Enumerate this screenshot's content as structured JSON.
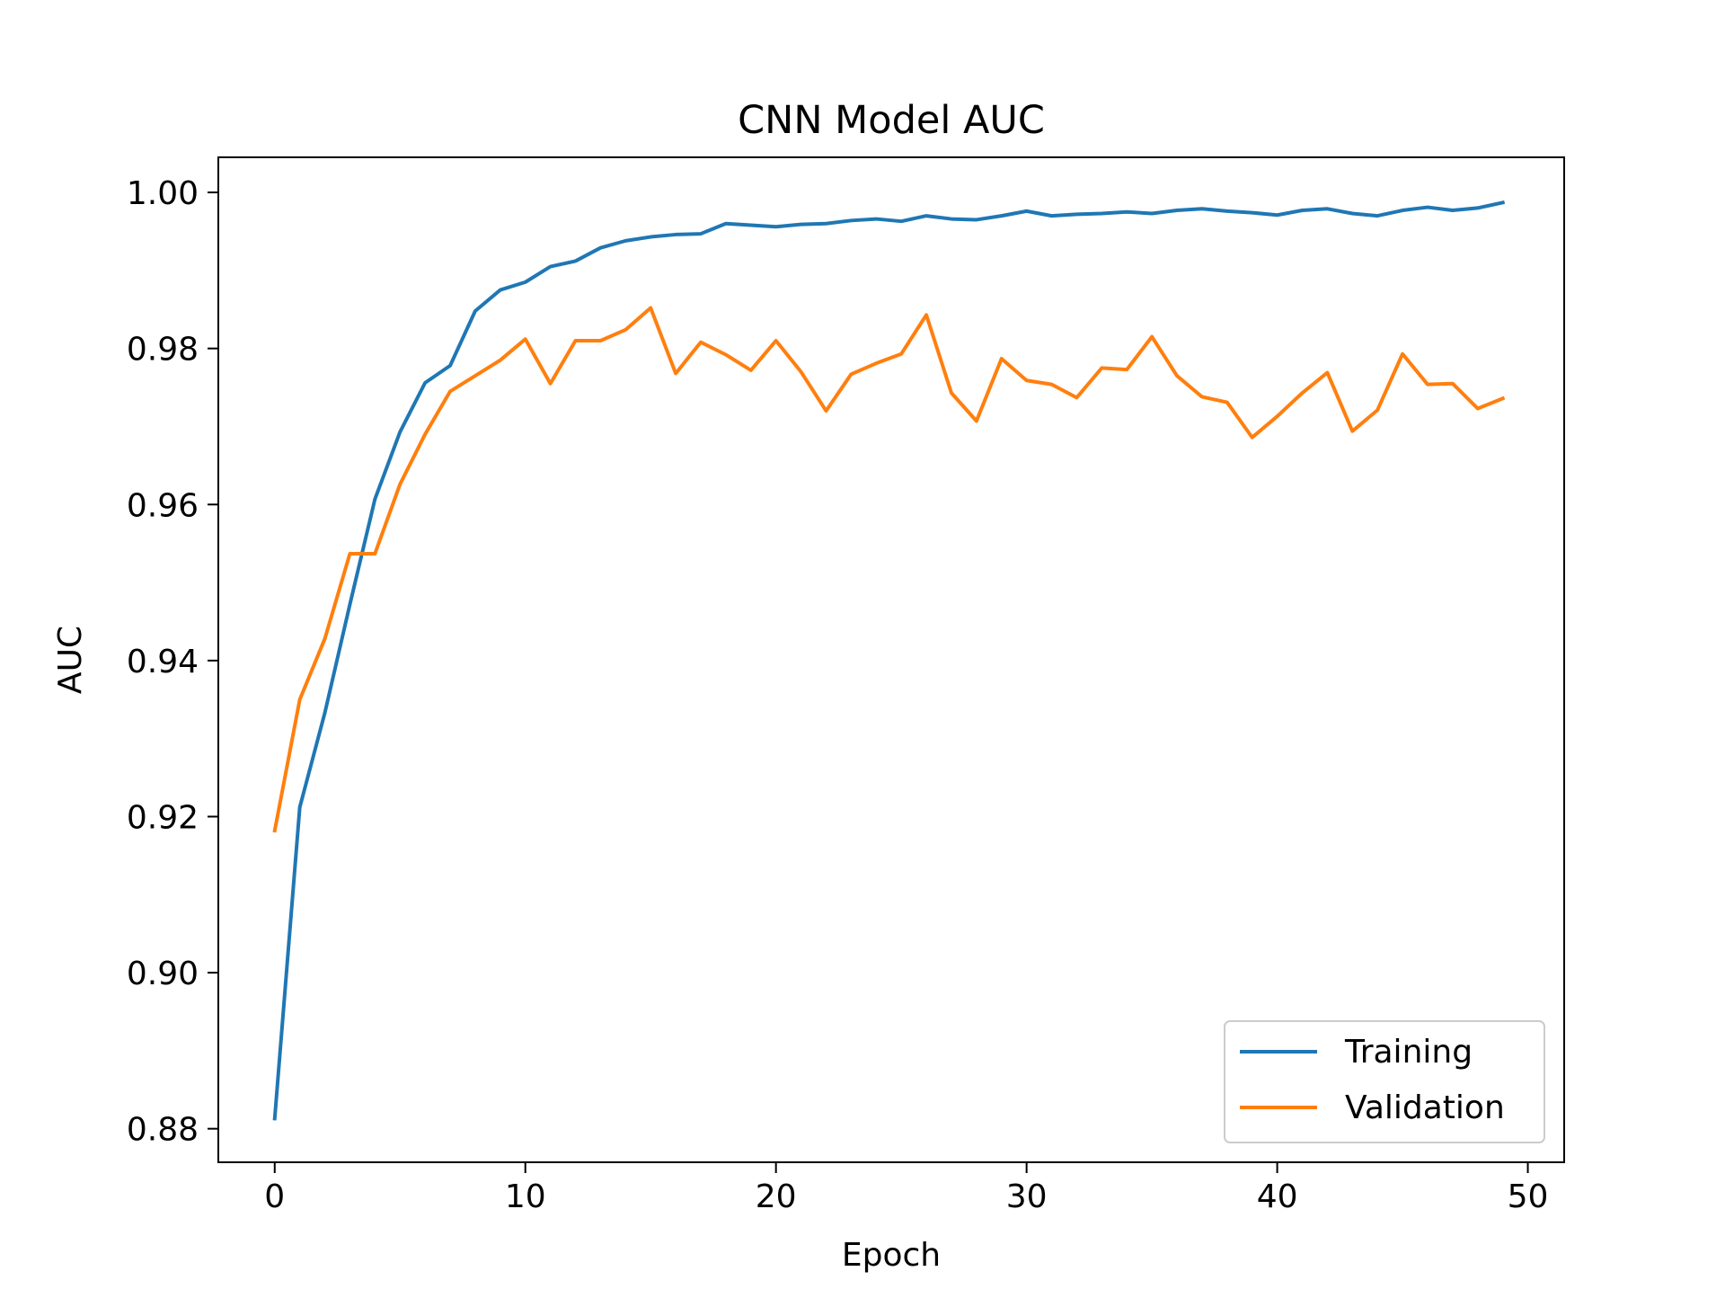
{
  "chart_data": {
    "type": "line",
    "title": "CNN Model AUC",
    "xlabel": "Epoch",
    "ylabel": "AUC",
    "xlim": [
      -2.25,
      51.45
    ],
    "ylim": [
      0.8757,
      1.0045
    ],
    "xticks": [
      0,
      10,
      20,
      30,
      40,
      50
    ],
    "xtick_labels": [
      "0",
      "10",
      "20",
      "30",
      "40",
      "50"
    ],
    "yticks": [
      0.88,
      0.9,
      0.92,
      0.94,
      0.96,
      0.98,
      1.0
    ],
    "ytick_labels": [
      "0.88",
      "0.90",
      "0.92",
      "0.94",
      "0.96",
      "0.98",
      "1.00"
    ],
    "grid": false,
    "legend_position": "bottom-right",
    "x": [
      0,
      1,
      2,
      3,
      4,
      5,
      6,
      7,
      8,
      9,
      10,
      11,
      12,
      13,
      14,
      15,
      16,
      17,
      18,
      19,
      20,
      21,
      22,
      23,
      24,
      25,
      26,
      27,
      28,
      29,
      30,
      31,
      32,
      33,
      34,
      35,
      36,
      37,
      38,
      39,
      40,
      41,
      42,
      43,
      44,
      45,
      46,
      47,
      48,
      49
    ],
    "series": [
      {
        "name": "Training",
        "color": "#1f77b4",
        "values": [
          0.8813,
          0.9212,
          0.9333,
          0.9472,
          0.9607,
          0.9693,
          0.9756,
          0.9778,
          0.9848,
          0.9875,
          0.9885,
          0.9905,
          0.9912,
          0.9929,
          0.9938,
          0.9943,
          0.9946,
          0.9947,
          0.996,
          0.9958,
          0.9956,
          0.9959,
          0.996,
          0.9964,
          0.9966,
          0.9963,
          0.997,
          0.9966,
          0.9965,
          0.997,
          0.9976,
          0.997,
          0.9972,
          0.9973,
          0.9975,
          0.9973,
          0.9977,
          0.9979,
          0.9976,
          0.9974,
          0.9971,
          0.9977,
          0.9979,
          0.9973,
          0.997,
          0.9977,
          0.9981,
          0.9977,
          0.998,
          0.9987
        ]
      },
      {
        "name": "Validation",
        "color": "#ff7f0e",
        "values": [
          0.9182,
          0.935,
          0.9428,
          0.9537,
          0.9537,
          0.9626,
          0.969,
          0.9745,
          0.9765,
          0.9785,
          0.9812,
          0.9755,
          0.981,
          0.981,
          0.9824,
          0.9852,
          0.9768,
          0.9808,
          0.9792,
          0.9772,
          0.981,
          0.977,
          0.972,
          0.9767,
          0.9781,
          0.9793,
          0.9843,
          0.9743,
          0.9707,
          0.9787,
          0.9759,
          0.9754,
          0.9737,
          0.9775,
          0.9773,
          0.9815,
          0.9765,
          0.9738,
          0.9731,
          0.9686,
          0.9713,
          0.9743,
          0.9769,
          0.9694,
          0.9721,
          0.9793,
          0.9754,
          0.9755,
          0.9723,
          0.9736
        ]
      }
    ]
  }
}
